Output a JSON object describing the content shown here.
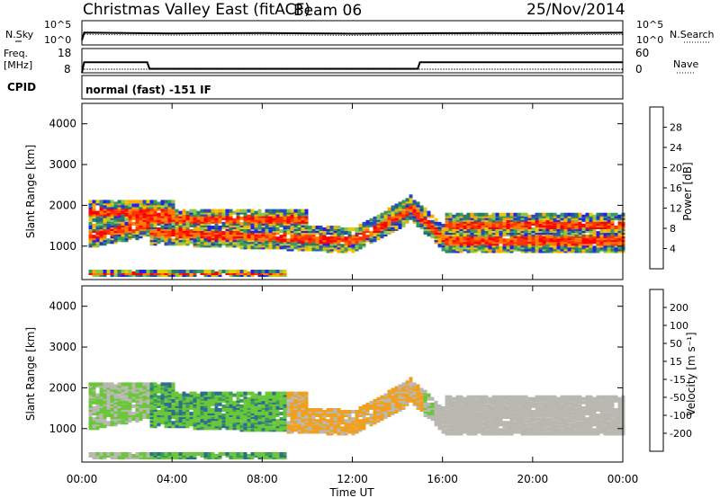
{
  "header": {
    "station": "Christmas Valley East (fitACF)",
    "beam": "Beam 06",
    "date": "25/Nov/2014"
  },
  "noise_panel": {
    "left_label": "N.Sky",
    "right_label": "N.Search",
    "left_ticks": [
      "10^5",
      "10^0"
    ],
    "right_ticks": [
      "10^5",
      "10^0"
    ]
  },
  "freq_panel": {
    "left_label_1": "Freq.",
    "left_label_2": "[MHz]",
    "left_ticks": [
      "18",
      "8"
    ],
    "right_label": "Nave",
    "right_ticks": [
      "60",
      "0"
    ]
  },
  "cpid_panel": {
    "label": "CPID",
    "text": "normal (fast) -151 IF"
  },
  "power_panel": {
    "ylabel": "Slant Range [km]",
    "yticks": [
      "4000",
      "3000",
      "2000",
      "1000"
    ],
    "colorbar_label": "Power [dB]",
    "colorbar_ticks": [
      "28",
      "24",
      "20",
      "16",
      "12",
      "8",
      "4"
    ],
    "colorbar_colors": [
      "#ff0000",
      "#ff3300",
      "#ff7a00",
      "#ffaa00",
      "#e6cc00",
      "#8ac64a",
      "#3b9a5c",
      "#2a7a6a",
      "#264dba",
      "#2222ee"
    ]
  },
  "velocity_panel": {
    "ylabel": "Slant Range [km]",
    "yticks": [
      "4000",
      "3000",
      "2000",
      "1000"
    ],
    "colorbar_label": "Velocity [m s⁻¹]",
    "colorbar_ticks": [
      "200",
      "100",
      "50",
      "15",
      "-15",
      "-50",
      "-100",
      "-200"
    ],
    "colorbar_colors": [
      "#1f3aa8",
      "#2c6e8c",
      "#3b9a5c",
      "#6ac63a",
      "#b8b8b0",
      "#f0a020",
      "#ff7000",
      "#ff3000",
      "#ee0000"
    ]
  },
  "xaxis": {
    "ticks": [
      "00:00",
      "04:00",
      "08:00",
      "12:00",
      "16:00",
      "20:00",
      "00:00"
    ],
    "label": "Time UT"
  },
  "chart_data": [
    {
      "type": "line",
      "title": "Christmas Valley East (fitACF) Beam 06 25/Nov/2014",
      "ylabel": "N.Sky",
      "series": [
        {
          "name": "N.Sky",
          "x": [
            0,
            0.1,
            2,
            4,
            6,
            8,
            10,
            12,
            14,
            16,
            18,
            20,
            22,
            24
          ],
          "values": [
            10,
            3000,
            2000,
            1500,
            1800,
            2000,
            1600,
            1200,
            1500,
            1800,
            2000,
            1700,
            2200,
            2500
          ]
        }
      ],
      "ylim": [
        1,
        100000
      ],
      "yscale": "log"
    },
    {
      "type": "line",
      "ylabel": "Freq. [MHz]",
      "xlim": [
        0,
        24
      ],
      "ylim": [
        8,
        18
      ],
      "series": [
        {
          "name": "Freq.",
          "x": [
            0,
            0.1,
            2.9,
            3.0,
            14.9,
            15.0,
            24
          ],
          "values": [
            8,
            14.5,
            14.5,
            10.5,
            10.5,
            14.5,
            14.5
          ]
        }
      ]
    },
    {
      "type": "heatmap",
      "title": "Power [dB]",
      "xlabel": "Time UT",
      "ylabel": "Slant Range [km]",
      "xlim": [
        0,
        24
      ],
      "ylim": [
        180,
        4500
      ],
      "x_ticks": [
        "00:00",
        "04:00",
        "08:00",
        "12:00",
        "16:00",
        "20:00",
        "00:00"
      ],
      "colorbar_range": [
        0,
        30
      ]
    },
    {
      "type": "heatmap",
      "title": "Velocity [m s⁻¹]",
      "xlabel": "Time UT",
      "ylabel": "Slant Range [km]",
      "xlim": [
        0,
        24
      ],
      "ylim": [
        180,
        4500
      ],
      "x_ticks": [
        "00:00",
        "04:00",
        "08:00",
        "12:00",
        "16:00",
        "20:00",
        "00:00"
      ],
      "colorbar_range": [
        -200,
        200
      ]
    }
  ]
}
